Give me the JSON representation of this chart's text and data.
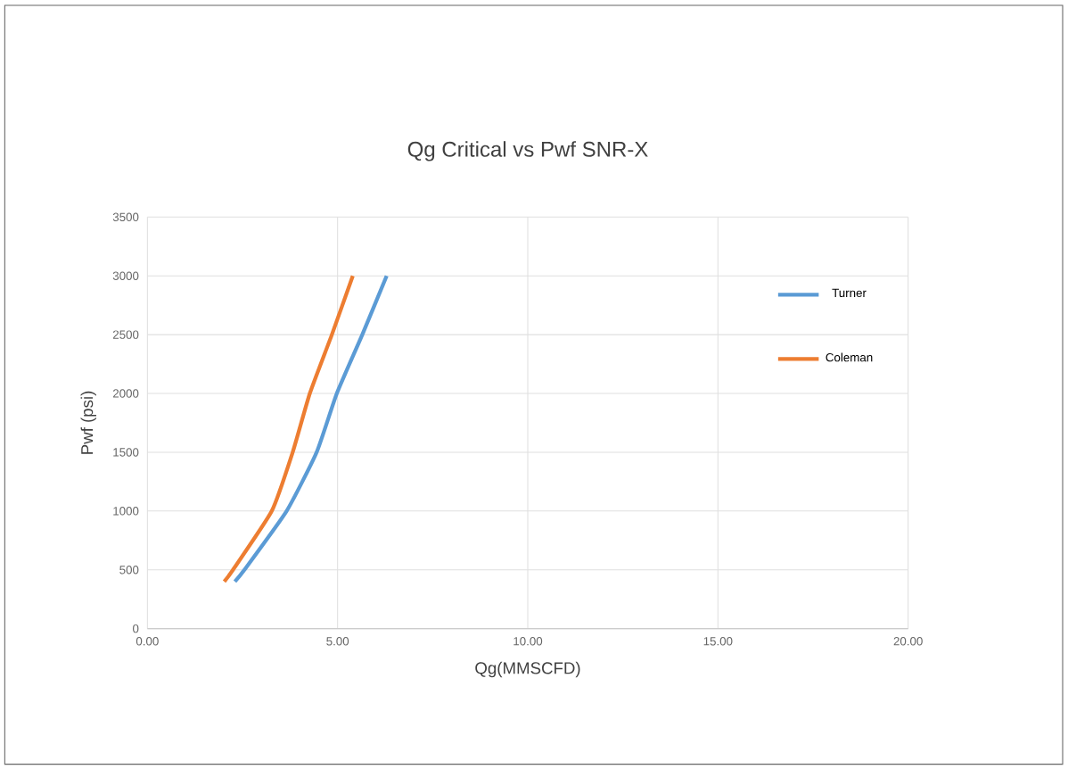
{
  "chart_data": {
    "type": "line",
    "title": "Qg Critical vs Pwf SNR-X",
    "xlabel": "Qg(MMSCFD)",
    "ylabel": "Pwf (psi)",
    "xlim": [
      0,
      20
    ],
    "xticks": [
      {
        "value": 0,
        "label": "0.00"
      },
      {
        "value": 5,
        "label": "5.00"
      },
      {
        "value": 10,
        "label": "10.00"
      },
      {
        "value": 15,
        "label": "15.00"
      },
      {
        "value": 20,
        "label": "20.00"
      }
    ],
    "ylim": [
      0,
      3500
    ],
    "yticks": [
      0,
      500,
      1000,
      1500,
      2000,
      2500,
      3000,
      3500
    ],
    "grid": true,
    "legend": "right",
    "marker": "none",
    "line_style": "solid",
    "series": [
      {
        "name": "Turner",
        "color": "#5b9bd5",
        "x": [
          2.3,
          2.55,
          3.66,
          4.45,
          4.98,
          5.65,
          6.29
        ],
        "values": [
          400,
          500,
          1000,
          1500,
          2000,
          2500,
          3000
        ]
      },
      {
        "name": "Coleman",
        "color": "#ed7d31",
        "x": [
          2.02,
          2.25,
          3.27,
          3.82,
          4.27,
          4.85,
          5.4
        ],
        "values": [
          400,
          500,
          1000,
          1500,
          2000,
          2500,
          3000
        ]
      }
    ]
  }
}
